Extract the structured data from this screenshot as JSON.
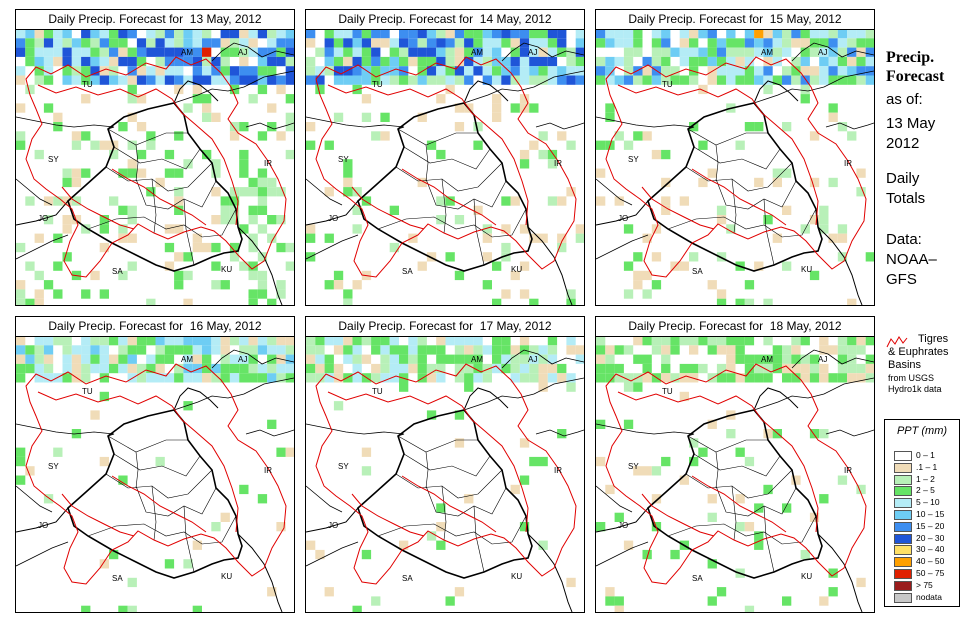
{
  "panels": [
    {
      "title": "Daily Precip. Forecast for  13 May, 2012"
    },
    {
      "title": "Daily Precip. Forecast for  14 May, 2012"
    },
    {
      "title": "Daily Precip. Forecast for  15 May, 2012"
    },
    {
      "title": "Daily Precip. Forecast for  16 May, 2012"
    },
    {
      "title": "Daily Precip. Forecast for  17 May, 2012"
    },
    {
      "title": "Daily Precip. Forecast for  18 May, 2012"
    }
  ],
  "map_labels": [
    "AM",
    "AJ",
    "TU",
    "SY",
    "IR",
    "JO",
    "SA",
    "KU"
  ],
  "side": {
    "title_line1": "Precip.",
    "title_line2": "Forecast",
    "as_of": "as of:",
    "date1": "13 May",
    "date2": "2012",
    "daily1": "Daily",
    "daily2": "Totals",
    "data1": "Data:",
    "data2": "NOAA–",
    "data3": "GFS"
  },
  "basin_key": {
    "line1": "Tigres",
    "line2": "& Euphrates",
    "line3": "Basins",
    "line4": "from USGS",
    "line5": "Hydro1k data",
    "color": "#e00000"
  },
  "legend": {
    "title": "PPT (mm)",
    "items": [
      {
        "label": "0 – 1",
        "color": "#ffffff"
      },
      {
        "label": ".1 – 1",
        "color": "#f0dcb8"
      },
      {
        "label": "1 – 2",
        "color": "#b8f0b8"
      },
      {
        "label": "2 – 5",
        "color": "#66e466"
      },
      {
        "label": "5 – 10",
        "color": "#b4ecf6"
      },
      {
        "label": "10 – 15",
        "color": "#6ecdf4"
      },
      {
        "label": "15 – 20",
        "color": "#3d8ef0"
      },
      {
        "label": "20 – 30",
        "color": "#1f55d8"
      },
      {
        "label": "30 – 40",
        "color": "#ffe066"
      },
      {
        "label": "40 – 50",
        "color": "#ffa000"
      },
      {
        "label": "50 – 75",
        "color": "#e02000"
      },
      {
        "label": "> 75",
        "color": "#9a1c1c"
      },
      {
        "label": "nodata",
        "color": "#c8c8c8"
      }
    ]
  }
}
